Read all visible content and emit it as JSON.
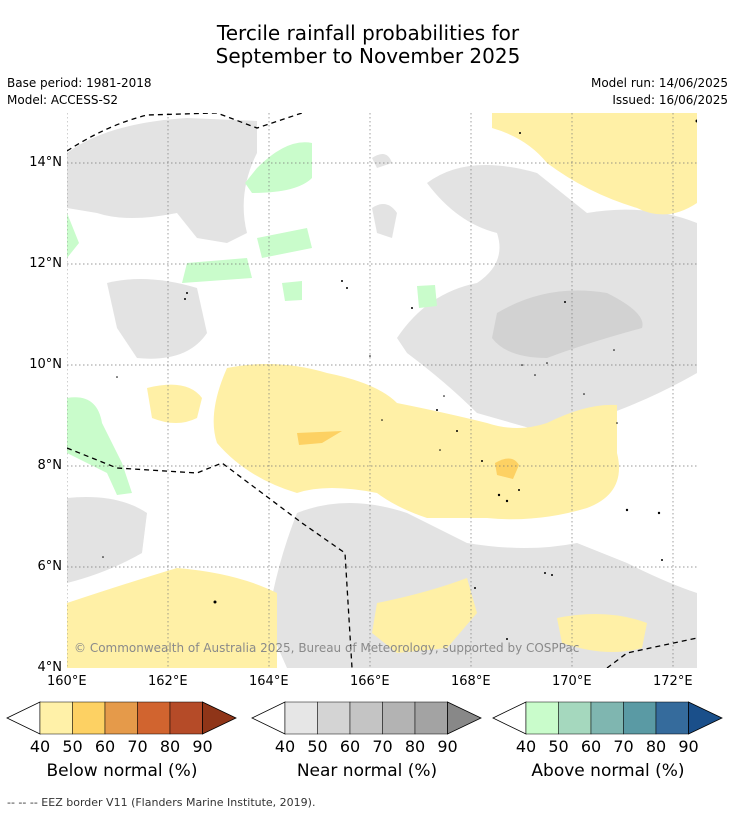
{
  "title_line1": "Tercile rainfall probabilities for",
  "title_line2": "September to November 2025",
  "base_period": "Base period: 1981-2018",
  "model": "Model: ACCESS-S2",
  "model_run": "Model run: 14/06/2025",
  "issued": "Issued: 16/06/2025",
  "copyright": "© Commonwealth of Australia 2025, Bureau of Meteorology, supported by COSPPac",
  "footer_legend": "--  --  -- EEZ border V11 (Flanders Marine Institute, 2019).",
  "map": {
    "lon_labels": [
      "160°E",
      "162°E",
      "164°E",
      "166°E",
      "168°E",
      "170°E",
      "172°E"
    ],
    "lat_labels": [
      "14°N",
      "12°N",
      "10°N",
      "8°N",
      "6°N",
      "4°N"
    ],
    "lon_range": [
      160,
      172.5
    ],
    "lat_range": [
      4,
      15
    ]
  },
  "colorbars": [
    {
      "title": "Below normal (%)",
      "ticks": [
        "40",
        "50",
        "60",
        "70",
        "80",
        "90"
      ],
      "colors": [
        "#fff1a8",
        "#fdd163",
        "#e59a4a",
        "#d1642f",
        "#b54b28",
        "#8f3518"
      ]
    },
    {
      "title": "Near normal (%)",
      "ticks": [
        "40",
        "50",
        "60",
        "70",
        "80",
        "90"
      ],
      "colors": [
        "#e6e6e6",
        "#d4d4d4",
        "#c4c4c4",
        "#b3b3b3",
        "#a3a3a3",
        "#888888"
      ]
    },
    {
      "title": "Above normal (%)",
      "ticks": [
        "40",
        "50",
        "60",
        "70",
        "80",
        "90"
      ],
      "colors": [
        "#c9fccb",
        "#a5d8be",
        "#7fb6b0",
        "#5a9aa4",
        "#356b9c",
        "#1a4f8a"
      ]
    }
  ]
}
